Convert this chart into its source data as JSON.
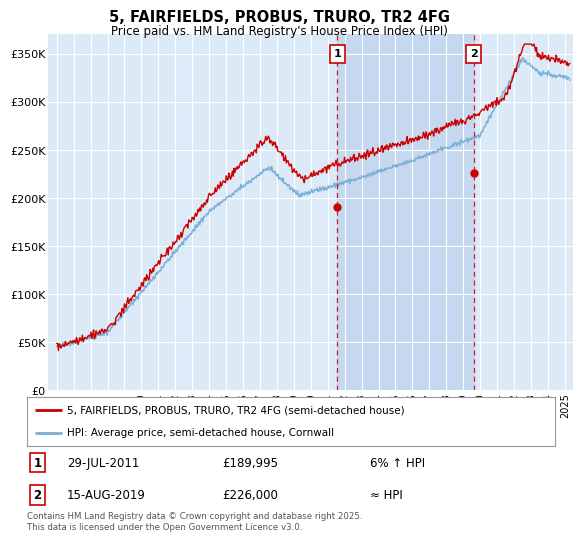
{
  "title": "5, FAIRFIELDS, PROBUS, TRURO, TR2 4FG",
  "subtitle": "Price paid vs. HM Land Registry's House Price Index (HPI)",
  "legend_label_red": "5, FAIRFIELDS, PROBUS, TRURO, TR2 4FG (semi-detached house)",
  "legend_label_blue": "HPI: Average price, semi-detached house, Cornwall",
  "footnote": "Contains HM Land Registry data © Crown copyright and database right 2025.\nThis data is licensed under the Open Government Licence v3.0.",
  "point1_date": "29-JUL-2011",
  "point1_price": "£189,995",
  "point1_hpi": "6% ↑ HPI",
  "point2_date": "15-AUG-2019",
  "point2_price": "£226,000",
  "point2_hpi": "≈ HPI",
  "point1_x": 2011.57,
  "point1_y": 190000,
  "point2_x": 2019.62,
  "point2_y": 226000,
  "ylim_min": 0,
  "ylim_max": 370000,
  "xlim_min": 1994.5,
  "xlim_max": 2025.5,
  "background_color": "#ffffff",
  "plot_bg_color": "#dce9f7",
  "shade_color": "#c5d8f0",
  "grid_color": "#ffffff",
  "red_color": "#cc0000",
  "blue_color": "#7aaed6",
  "yticks": [
    0,
    50000,
    100000,
    150000,
    200000,
    250000,
    300000,
    350000
  ],
  "ytick_labels": [
    "£0",
    "£50K",
    "£100K",
    "£150K",
    "£200K",
    "£250K",
    "£300K",
    "£350K"
  ],
  "xticks": [
    1995,
    1996,
    1997,
    1998,
    1999,
    2000,
    2001,
    2002,
    2003,
    2004,
    2005,
    2006,
    2007,
    2008,
    2009,
    2010,
    2011,
    2012,
    2013,
    2014,
    2015,
    2016,
    2017,
    2018,
    2019,
    2020,
    2021,
    2022,
    2023,
    2024,
    2025
  ]
}
